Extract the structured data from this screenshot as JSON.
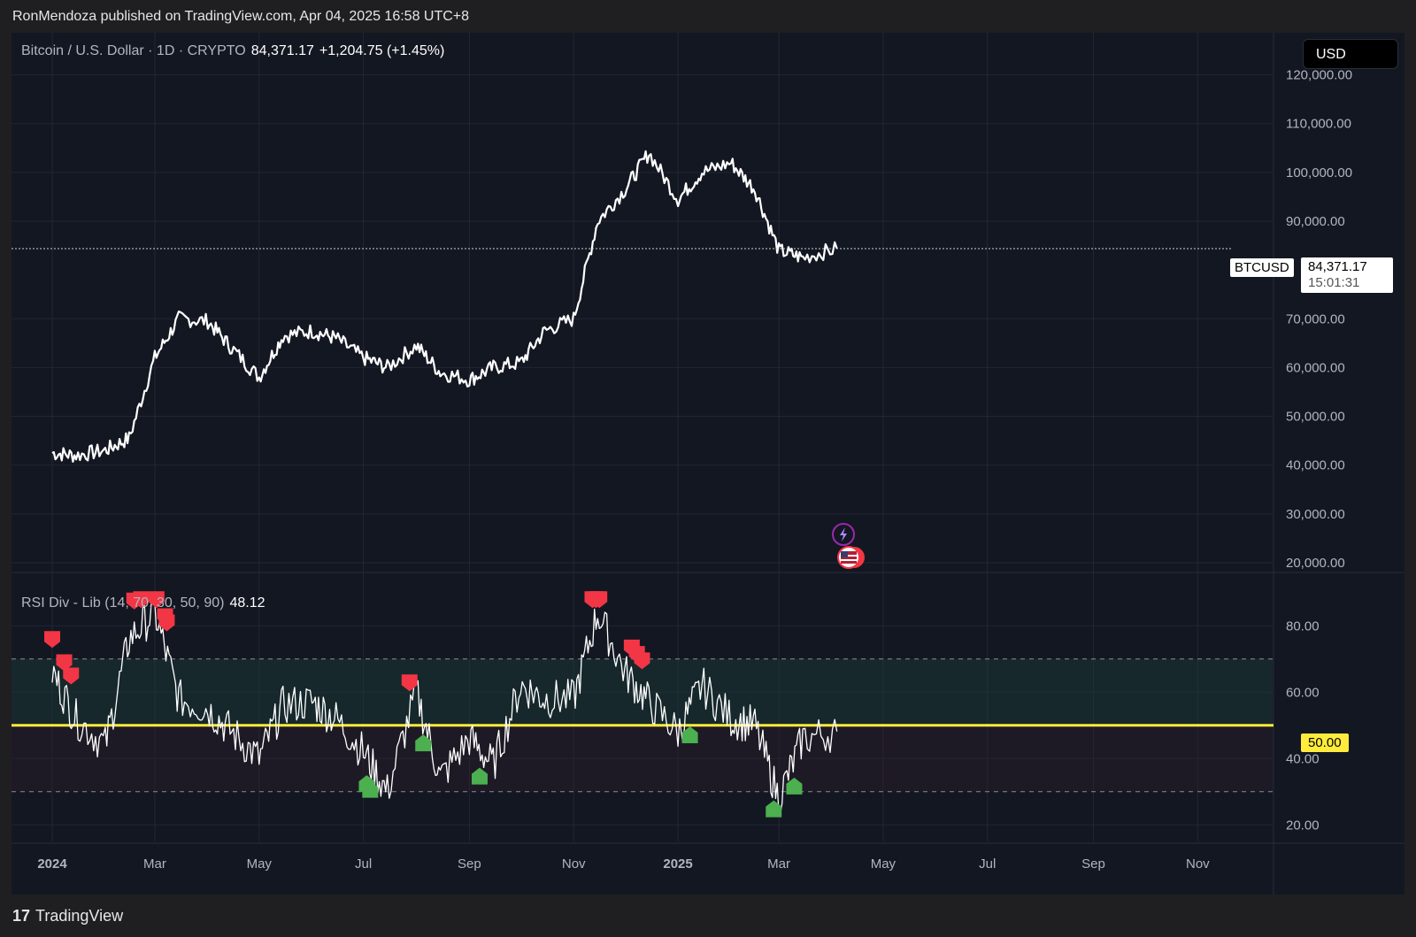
{
  "header": {
    "publisher_line": "RonMendoza published on TradingView.com, Apr 04, 2025 16:58 UTC+8"
  },
  "legend": {
    "symbol_desc": "Bitcoin / U.S. Dollar · 1D · CRYPTO",
    "last_price": "84,371.17",
    "change": "+1,204.75 (+1.45%)"
  },
  "currency_button": "USD",
  "price_tag": {
    "symbol": "BTCUSD",
    "price": "84,371.17",
    "countdown": "15:01:31"
  },
  "rsi_legend": {
    "name": "RSI Div - Lib (14, 70, 30, 50, 90)",
    "value": "48.12"
  },
  "rsi_midline_label": "50.00",
  "branding": {
    "logo": "17",
    "name": "TradingView"
  },
  "colors": {
    "background": "#131722",
    "price_line": "#ffffff",
    "midline": "#ffeb3b",
    "bear_marker": "#f23645",
    "bull_marker": "#4caf50"
  },
  "chart_data": [
    {
      "type": "line",
      "title": "Bitcoin / U.S. Dollar · 1D · CRYPTO",
      "x": [
        "2024-01-01",
        "2024-01-15",
        "2024-02-01",
        "2024-02-15",
        "2024-03-01",
        "2024-03-15",
        "2024-04-01",
        "2024-04-15",
        "2024-05-01",
        "2024-05-15",
        "2024-06-01",
        "2024-06-15",
        "2024-07-01",
        "2024-07-15",
        "2024-08-01",
        "2024-08-15",
        "2024-09-01",
        "2024-09-15",
        "2024-10-01",
        "2024-10-15",
        "2024-11-01",
        "2024-11-15",
        "2024-12-01",
        "2024-12-15",
        "2025-01-01",
        "2025-01-15",
        "2025-02-01",
        "2025-02-15",
        "2025-03-01",
        "2025-03-15",
        "2025-04-04"
      ],
      "series": [
        {
          "values": [
            42500,
            42000,
            43000,
            45500,
            62000,
            70000,
            69500,
            64000,
            58000,
            66500,
            67500,
            66000,
            62000,
            60000,
            64500,
            59000,
            57500,
            60000,
            61000,
            67500,
            70000,
            90000,
            96500,
            104000,
            94500,
            100000,
            102000,
            96500,
            84000,
            82500,
            84371.17
          ]
        }
      ],
      "yticks": [
        "120,000.00",
        "110,000.00",
        "100,000.00",
        "90,000.00",
        "70,000.00",
        "60,000.00",
        "50,000.00",
        "40,000.00",
        "30,000.00",
        "20,000.00"
      ],
      "ylim": [
        18000,
        125000
      ],
      "xticks": [
        "2024",
        "Mar",
        "May",
        "Jul",
        "Sep",
        "Nov",
        "2025",
        "Mar",
        "May",
        "Jul",
        "Sep",
        "Nov"
      ],
      "grid": true
    },
    {
      "type": "line",
      "title": "RSI Div - Lib (14, 70, 30, 50, 90)",
      "x": [
        "2024-01-01",
        "2024-01-15",
        "2024-02-01",
        "2024-02-15",
        "2024-03-01",
        "2024-03-15",
        "2024-04-01",
        "2024-04-15",
        "2024-05-01",
        "2024-05-15",
        "2024-06-01",
        "2024-06-15",
        "2024-07-01",
        "2024-07-15",
        "2024-08-01",
        "2024-08-15",
        "2024-09-01",
        "2024-09-15",
        "2024-10-01",
        "2024-10-15",
        "2024-11-01",
        "2024-11-15",
        "2024-12-01",
        "2024-12-15",
        "2025-01-01",
        "2025-01-15",
        "2025-02-01",
        "2025-02-15",
        "2025-03-01",
        "2025-03-15",
        "2025-04-04"
      ],
      "series": [
        {
          "values": [
            66,
            52,
            44,
            76,
            84,
            58,
            55,
            48,
            40,
            56,
            57,
            52,
            42,
            30,
            60,
            34,
            46,
            38,
            62,
            58,
            58,
            84,
            66,
            57,
            48,
            62,
            52,
            50,
            28,
            46,
            48.12
          ]
        }
      ],
      "levels": [
        70,
        50,
        30
      ],
      "yticks": [
        "80.00",
        "60.00",
        "40.00",
        "20.00"
      ],
      "ylim": [
        15,
        95
      ],
      "bear_markers_at": [
        "2024-01-01",
        "2024-01-08",
        "2024-01-12",
        "2024-02-18",
        "2024-02-22",
        "2024-03-02",
        "2024-03-07",
        "2024-03-08",
        "2024-07-28",
        "2024-11-12",
        "2024-11-14",
        "2024-11-16",
        "2024-12-05",
        "2024-12-08",
        "2024-12-11"
      ],
      "bull_markers_at": [
        "2024-07-03",
        "2024-07-05",
        "2024-08-05",
        "2024-09-07",
        "2025-01-08",
        "2025-02-26",
        "2025-03-10"
      ]
    }
  ]
}
